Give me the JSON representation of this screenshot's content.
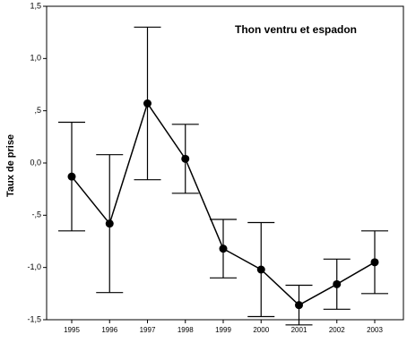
{
  "chart_data": {
    "type": "line",
    "title": "Thon ventru et espadon",
    "y_label": "Taux de prise",
    "categories": [
      "1995",
      "1996",
      "1997",
      "1998",
      "1999",
      "2000",
      "2001",
      "2002",
      "2003"
    ],
    "series": [
      {
        "color": "#000000",
        "values": [
          -0.13,
          -0.58,
          0.57,
          0.04,
          -0.82,
          -1.02,
          -1.36,
          -1.16,
          -0.95
        ],
        "errors": [
          0.52,
          0.66,
          0.73,
          0.33,
          0.28,
          0.45,
          0.19,
          0.24,
          0.3
        ]
      }
    ],
    "ylim": [
      -1.5,
      1.5
    ],
    "yticks": [
      {
        "value": -1.5,
        "label": "-1,5"
      },
      {
        "value": -1,
        "label": "-1,0"
      },
      {
        "value": -0.5,
        "label": "-,5"
      },
      {
        "value": 0,
        "label": "0,0"
      },
      {
        "value": 0.5,
        "label": ",5"
      },
      {
        "value": 1,
        "label": "1,0"
      },
      {
        "value": 1.5,
        "label": "1,5"
      }
    ],
    "grid": false
  }
}
